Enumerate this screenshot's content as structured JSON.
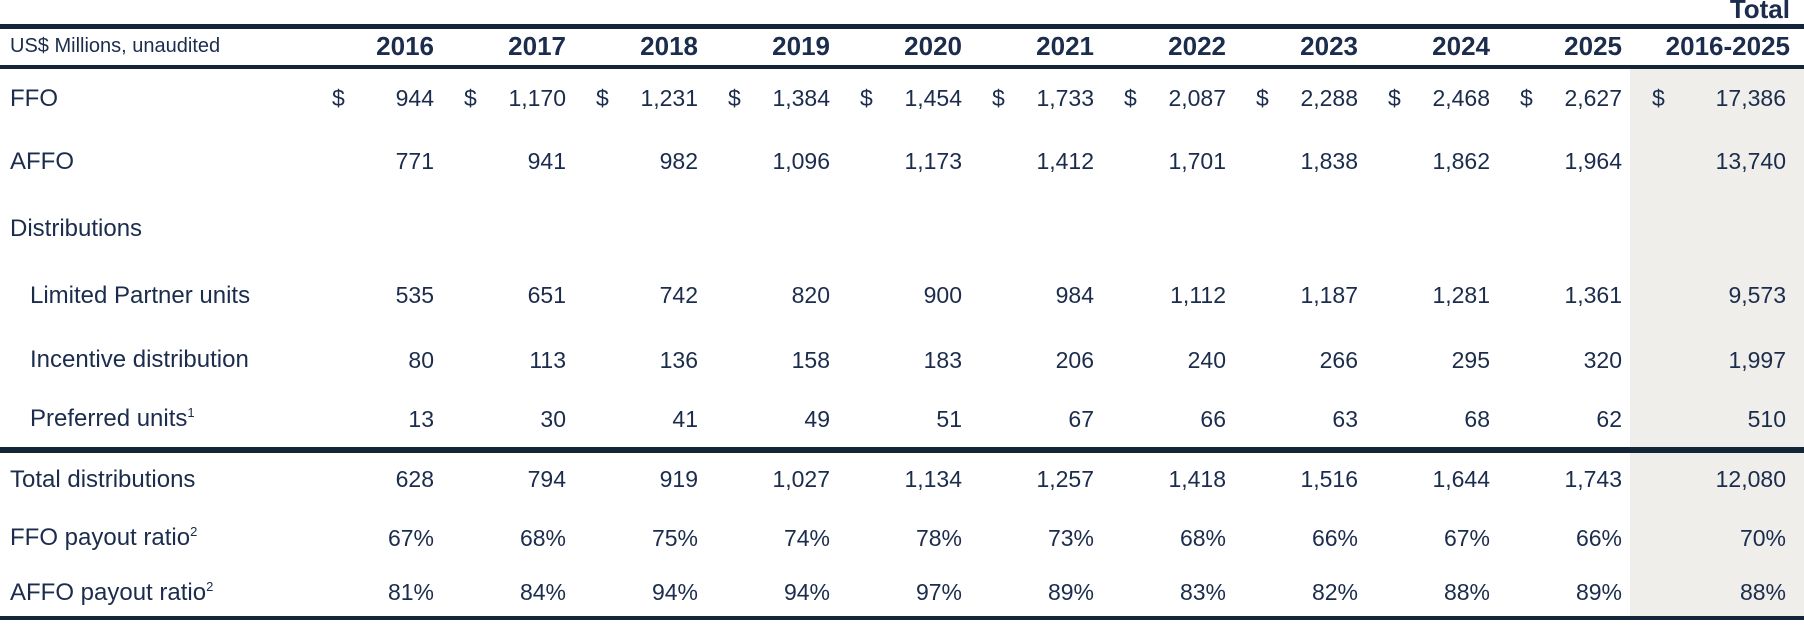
{
  "header": {
    "unit_label": "US$ Millions, unaudited",
    "total_top_label": "Total",
    "total_range_label": "2016-2025",
    "years": [
      "2016",
      "2017",
      "2018",
      "2019",
      "2020",
      "2021",
      "2022",
      "2023",
      "2024",
      "2025"
    ]
  },
  "table": {
    "dollar_sign": "$",
    "rows": [
      {
        "label": "FFO",
        "sup": "",
        "indent": false,
        "section": false,
        "dollar": true,
        "total_dollar": true,
        "rule_after": false,
        "values": [
          "944",
          "1,170",
          "1,231",
          "1,384",
          "1,454",
          "1,733",
          "2,087",
          "2,288",
          "2,468",
          "2,627"
        ],
        "total": "17,386"
      },
      {
        "label": "AFFO",
        "sup": "",
        "indent": false,
        "section": false,
        "dollar": false,
        "total_dollar": false,
        "rule_after": false,
        "values": [
          "771",
          "941",
          "982",
          "1,096",
          "1,173",
          "1,412",
          "1,701",
          "1,838",
          "1,862",
          "1,964"
        ],
        "total": "13,740"
      },
      {
        "label": "Distributions",
        "sup": "",
        "indent": false,
        "section": true,
        "dollar": false,
        "total_dollar": false,
        "rule_after": false,
        "values": [],
        "total": ""
      },
      {
        "label": "Limited Partner units",
        "sup": "",
        "indent": true,
        "section": false,
        "dollar": false,
        "total_dollar": false,
        "rule_after": false,
        "values": [
          "535",
          "651",
          "742",
          "820",
          "900",
          "984",
          "1,112",
          "1,187",
          "1,281",
          "1,361"
        ],
        "total": "9,573"
      },
      {
        "label": "Incentive distribution",
        "sup": "",
        "indent": true,
        "section": false,
        "dollar": false,
        "total_dollar": false,
        "rule_after": false,
        "values": [
          "80",
          "113",
          "136",
          "158",
          "183",
          "206",
          "240",
          "266",
          "295",
          "320"
        ],
        "total": "1,997"
      },
      {
        "label": "Preferred units",
        "sup": "1",
        "indent": true,
        "section": false,
        "dollar": false,
        "total_dollar": false,
        "rule_after": true,
        "values": [
          "13",
          "30",
          "41",
          "49",
          "51",
          "67",
          "66",
          "63",
          "68",
          "62"
        ],
        "total": "510"
      },
      {
        "label": "Total distributions",
        "sup": "",
        "indent": false,
        "section": false,
        "dollar": false,
        "total_dollar": false,
        "rule_after": false,
        "values": [
          "628",
          "794",
          "919",
          "1,027",
          "1,134",
          "1,257",
          "1,418",
          "1,516",
          "1,644",
          "1,743"
        ],
        "total": "12,080"
      },
      {
        "label": "FFO payout ratio",
        "sup": "2",
        "indent": false,
        "section": false,
        "dollar": false,
        "total_dollar": false,
        "rule_after": false,
        "values": [
          "67%",
          "68%",
          "75%",
          "74%",
          "78%",
          "73%",
          "68%",
          "66%",
          "67%",
          "66%"
        ],
        "total": "70%"
      },
      {
        "label": "AFFO payout ratio",
        "sup": "2",
        "indent": false,
        "section": false,
        "dollar": false,
        "total_dollar": false,
        "rule_after": false,
        "values": [
          "81%",
          "84%",
          "94%",
          "94%",
          "97%",
          "89%",
          "83%",
          "82%",
          "88%",
          "89%"
        ],
        "total": "88%"
      }
    ]
  },
  "colors": {
    "text_navy": "#1b2c4c",
    "rule_navy": "#142539",
    "total_column_bg": "#efeeea"
  }
}
